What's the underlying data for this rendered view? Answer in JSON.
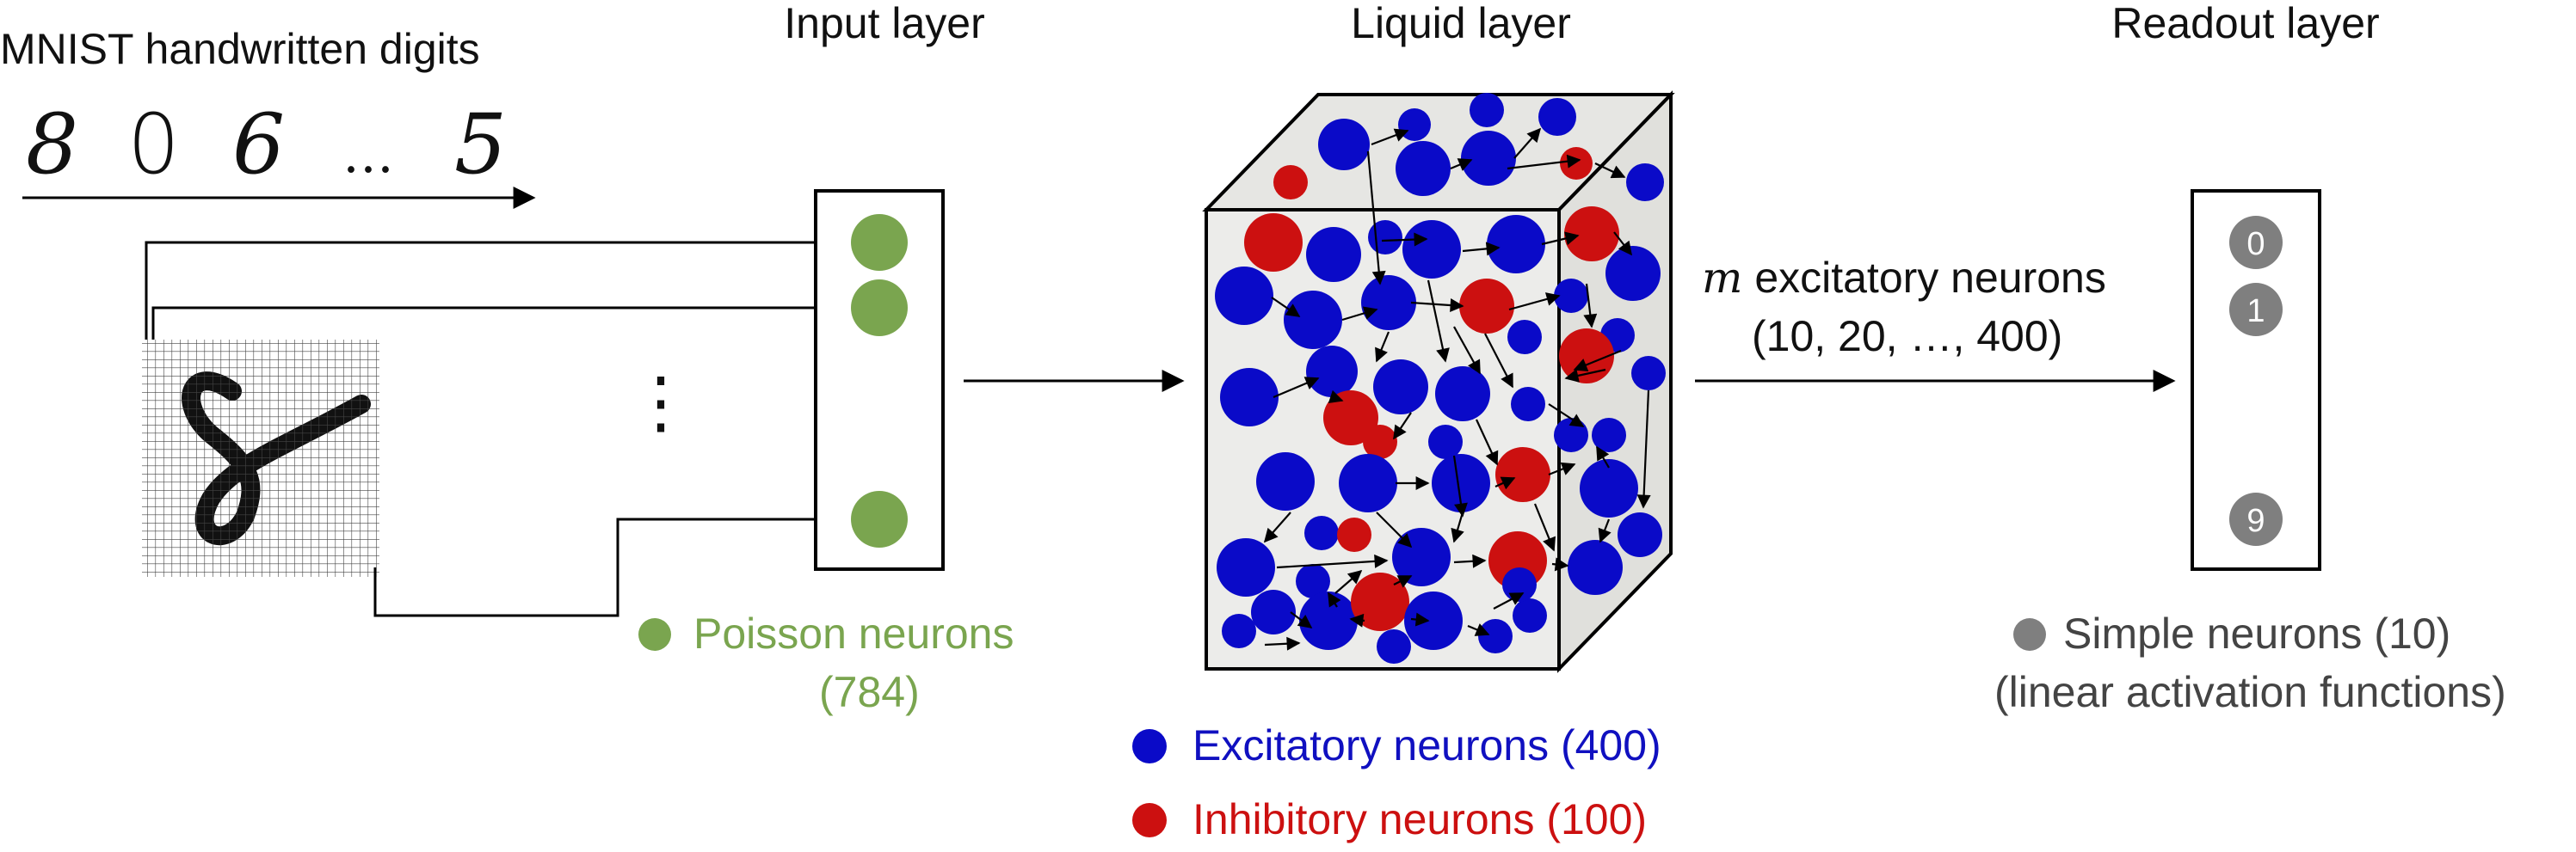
{
  "mnist": {
    "title": "MNIST handwritten digits",
    "digits": [
      "8",
      "0",
      "6",
      "…",
      "5"
    ]
  },
  "headers": {
    "input": "Input layer",
    "liquid": "Liquid layer",
    "readout": "Readout layer"
  },
  "input_layer": {
    "legend_line1": "Poisson neurons",
    "legend_line2": "(784)",
    "color": "#7aa54f",
    "vdots": "⋮"
  },
  "liquid_layer": {
    "excitatory_label": "Excitatory neurons (400)",
    "inhibitory_label": "Inhibitory neurons (100)",
    "excitatory_color": "#0a0ac8",
    "inhibitory_color": "#cc1010"
  },
  "connection_label": {
    "var": "m",
    "line1_rest": " excitatory neurons",
    "line2": "(10, 20, …, 400)"
  },
  "readout_layer": {
    "nodes": [
      "0",
      "1",
      "9"
    ],
    "vdots": "⋮",
    "legend_line1": "Simple neurons (10)",
    "legend_line2": "(linear activation functions)",
    "color": "#7f7f7f"
  },
  "middle_vdots": "⋮"
}
